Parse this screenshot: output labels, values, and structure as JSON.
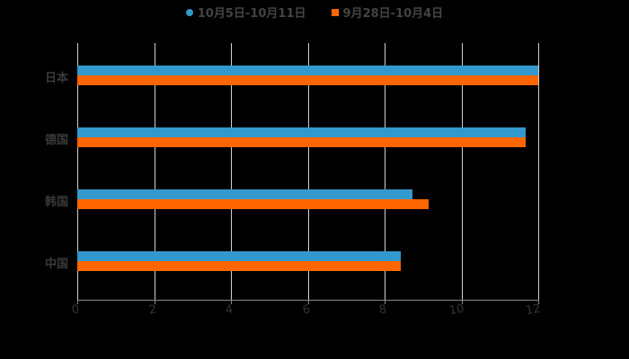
{
  "chart_data": {
    "type": "bar",
    "orientation": "horizontal",
    "title": "",
    "categories": [
      "日本",
      "德国",
      "韩国",
      "中国"
    ],
    "series": [
      {
        "name": "10月5日-10月11日",
        "color": "#3399cc",
        "values": [
          12.0,
          11.67,
          8.73,
          8.42
        ]
      },
      {
        "name": "9月28日-10月4日",
        "color": "#ff6600",
        "values": [
          12.0,
          11.67,
          9.15,
          8.42
        ]
      }
    ],
    "xlabel": "",
    "ylabel": "",
    "xlim": [
      0,
      12
    ],
    "xticks": [
      "0",
      "2",
      "4",
      "6",
      "8",
      "10",
      "12"
    ],
    "grid": true,
    "legend_position": "top"
  },
  "legend": {
    "series1": "10月5日-10月11日",
    "series2": "9月28日-10月4日"
  }
}
